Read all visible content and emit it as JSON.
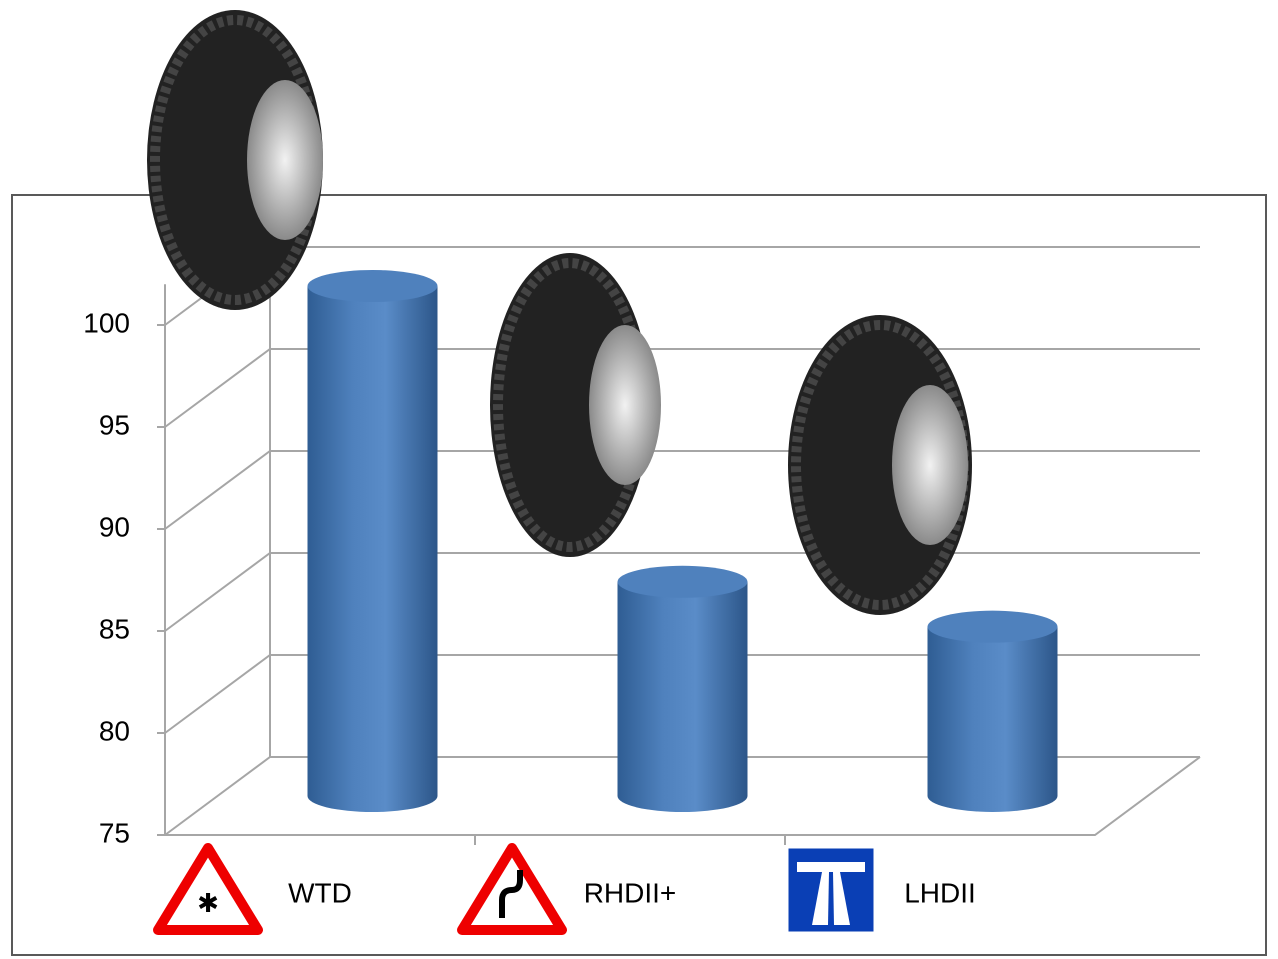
{
  "chart_data": {
    "type": "bar",
    "categories": [
      "WTD",
      "RHDII+",
      "LHDII"
    ],
    "values": [
      100,
      85.5,
      83.3
    ],
    "color": "#4f81bd",
    "ylim": [
      75,
      102
    ],
    "yticks": [
      75,
      80,
      85,
      90,
      95,
      100
    ],
    "grid": true
  }
}
